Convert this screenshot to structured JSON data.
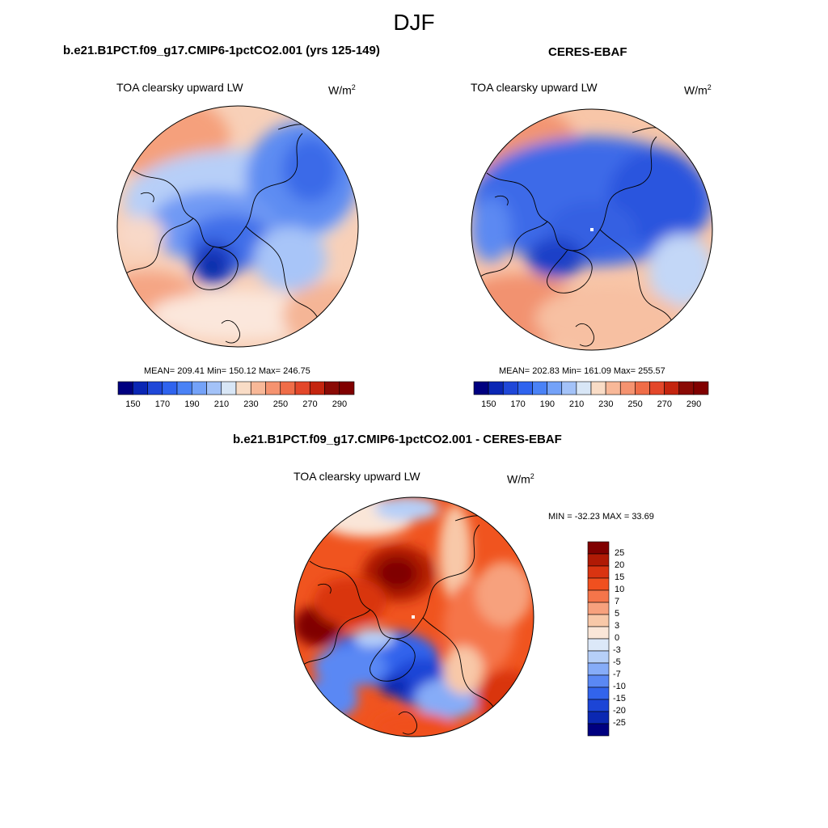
{
  "figure": {
    "season": "DJF"
  },
  "panels": [
    {
      "id": "model",
      "title": "b.e21.B1PCT.f09_g17.CMIP6-1pctCO2.001 (yrs 125-149)",
      "variable": "TOA clearsky upward LW",
      "units": "W/m",
      "units_sup": "2",
      "stats": "MEAN= 209.41  Min= 150.12  Max= 246.75",
      "mean": 209.41,
      "min": 150.12,
      "max": 246.75,
      "projection": "north polar stereographic"
    },
    {
      "id": "obs",
      "title": "CERES-EBAF",
      "variable": "TOA clearsky upward LW",
      "units": "W/m",
      "units_sup": "2",
      "stats": "MEAN= 202.83  Min= 161.09  Max= 255.57",
      "mean": 202.83,
      "min": 161.09,
      "max": 255.57,
      "projection": "north polar stereographic"
    },
    {
      "id": "diff",
      "title": "b.e21.B1PCT.f09_g17.CMIP6-1pctCO2.001 - CERES-EBAF",
      "variable": "TOA clearsky upward LW",
      "units": "W/m",
      "units_sup": "2",
      "stats": "MIN = -32.23 MAX =  33.69",
      "min": -32.23,
      "max": 33.69,
      "projection": "north polar stereographic"
    }
  ],
  "colorbar_abs": {
    "orientation": "horizontal",
    "levels": [
      150,
      160,
      170,
      180,
      190,
      200,
      210,
      220,
      230,
      240,
      250,
      260,
      270,
      280,
      290
    ],
    "tick_labels": [
      "150",
      "170",
      "190",
      "210",
      "230",
      "250",
      "270",
      "290"
    ],
    "colors": [
      "#000080",
      "#0a26b4",
      "#1f47d8",
      "#2f63ee",
      "#4a82f6",
      "#74a2f8",
      "#a3c2f8",
      "#d8e6f6",
      "#f9dcc6",
      "#f8b898",
      "#f59370",
      "#ef6d48",
      "#e3472a",
      "#c4250f",
      "#8a0a05",
      "#800000"
    ]
  },
  "colorbar_diff": {
    "orientation": "vertical",
    "levels": [
      -25,
      -20,
      -15,
      -10,
      -7,
      -5,
      -3,
      0,
      3,
      5,
      7,
      10,
      15,
      20,
      25
    ],
    "tick_labels": [
      "25",
      "20",
      "15",
      "10",
      "7",
      "5",
      "3",
      "0",
      "-3",
      "-5",
      "-7",
      "-10",
      "-15",
      "-20",
      "-25"
    ],
    "colors_top_to_bottom": [
      "#800000",
      "#b01a05",
      "#d93411",
      "#f0501f",
      "#f5754a",
      "#f7a17d",
      "#f8c8a8",
      "#fae6d8",
      "#dce8f8",
      "#b6cff8",
      "#86acf8",
      "#5a88f4",
      "#3264ec",
      "#1c45d6",
      "#0b28b2",
      "#000080"
    ]
  }
}
